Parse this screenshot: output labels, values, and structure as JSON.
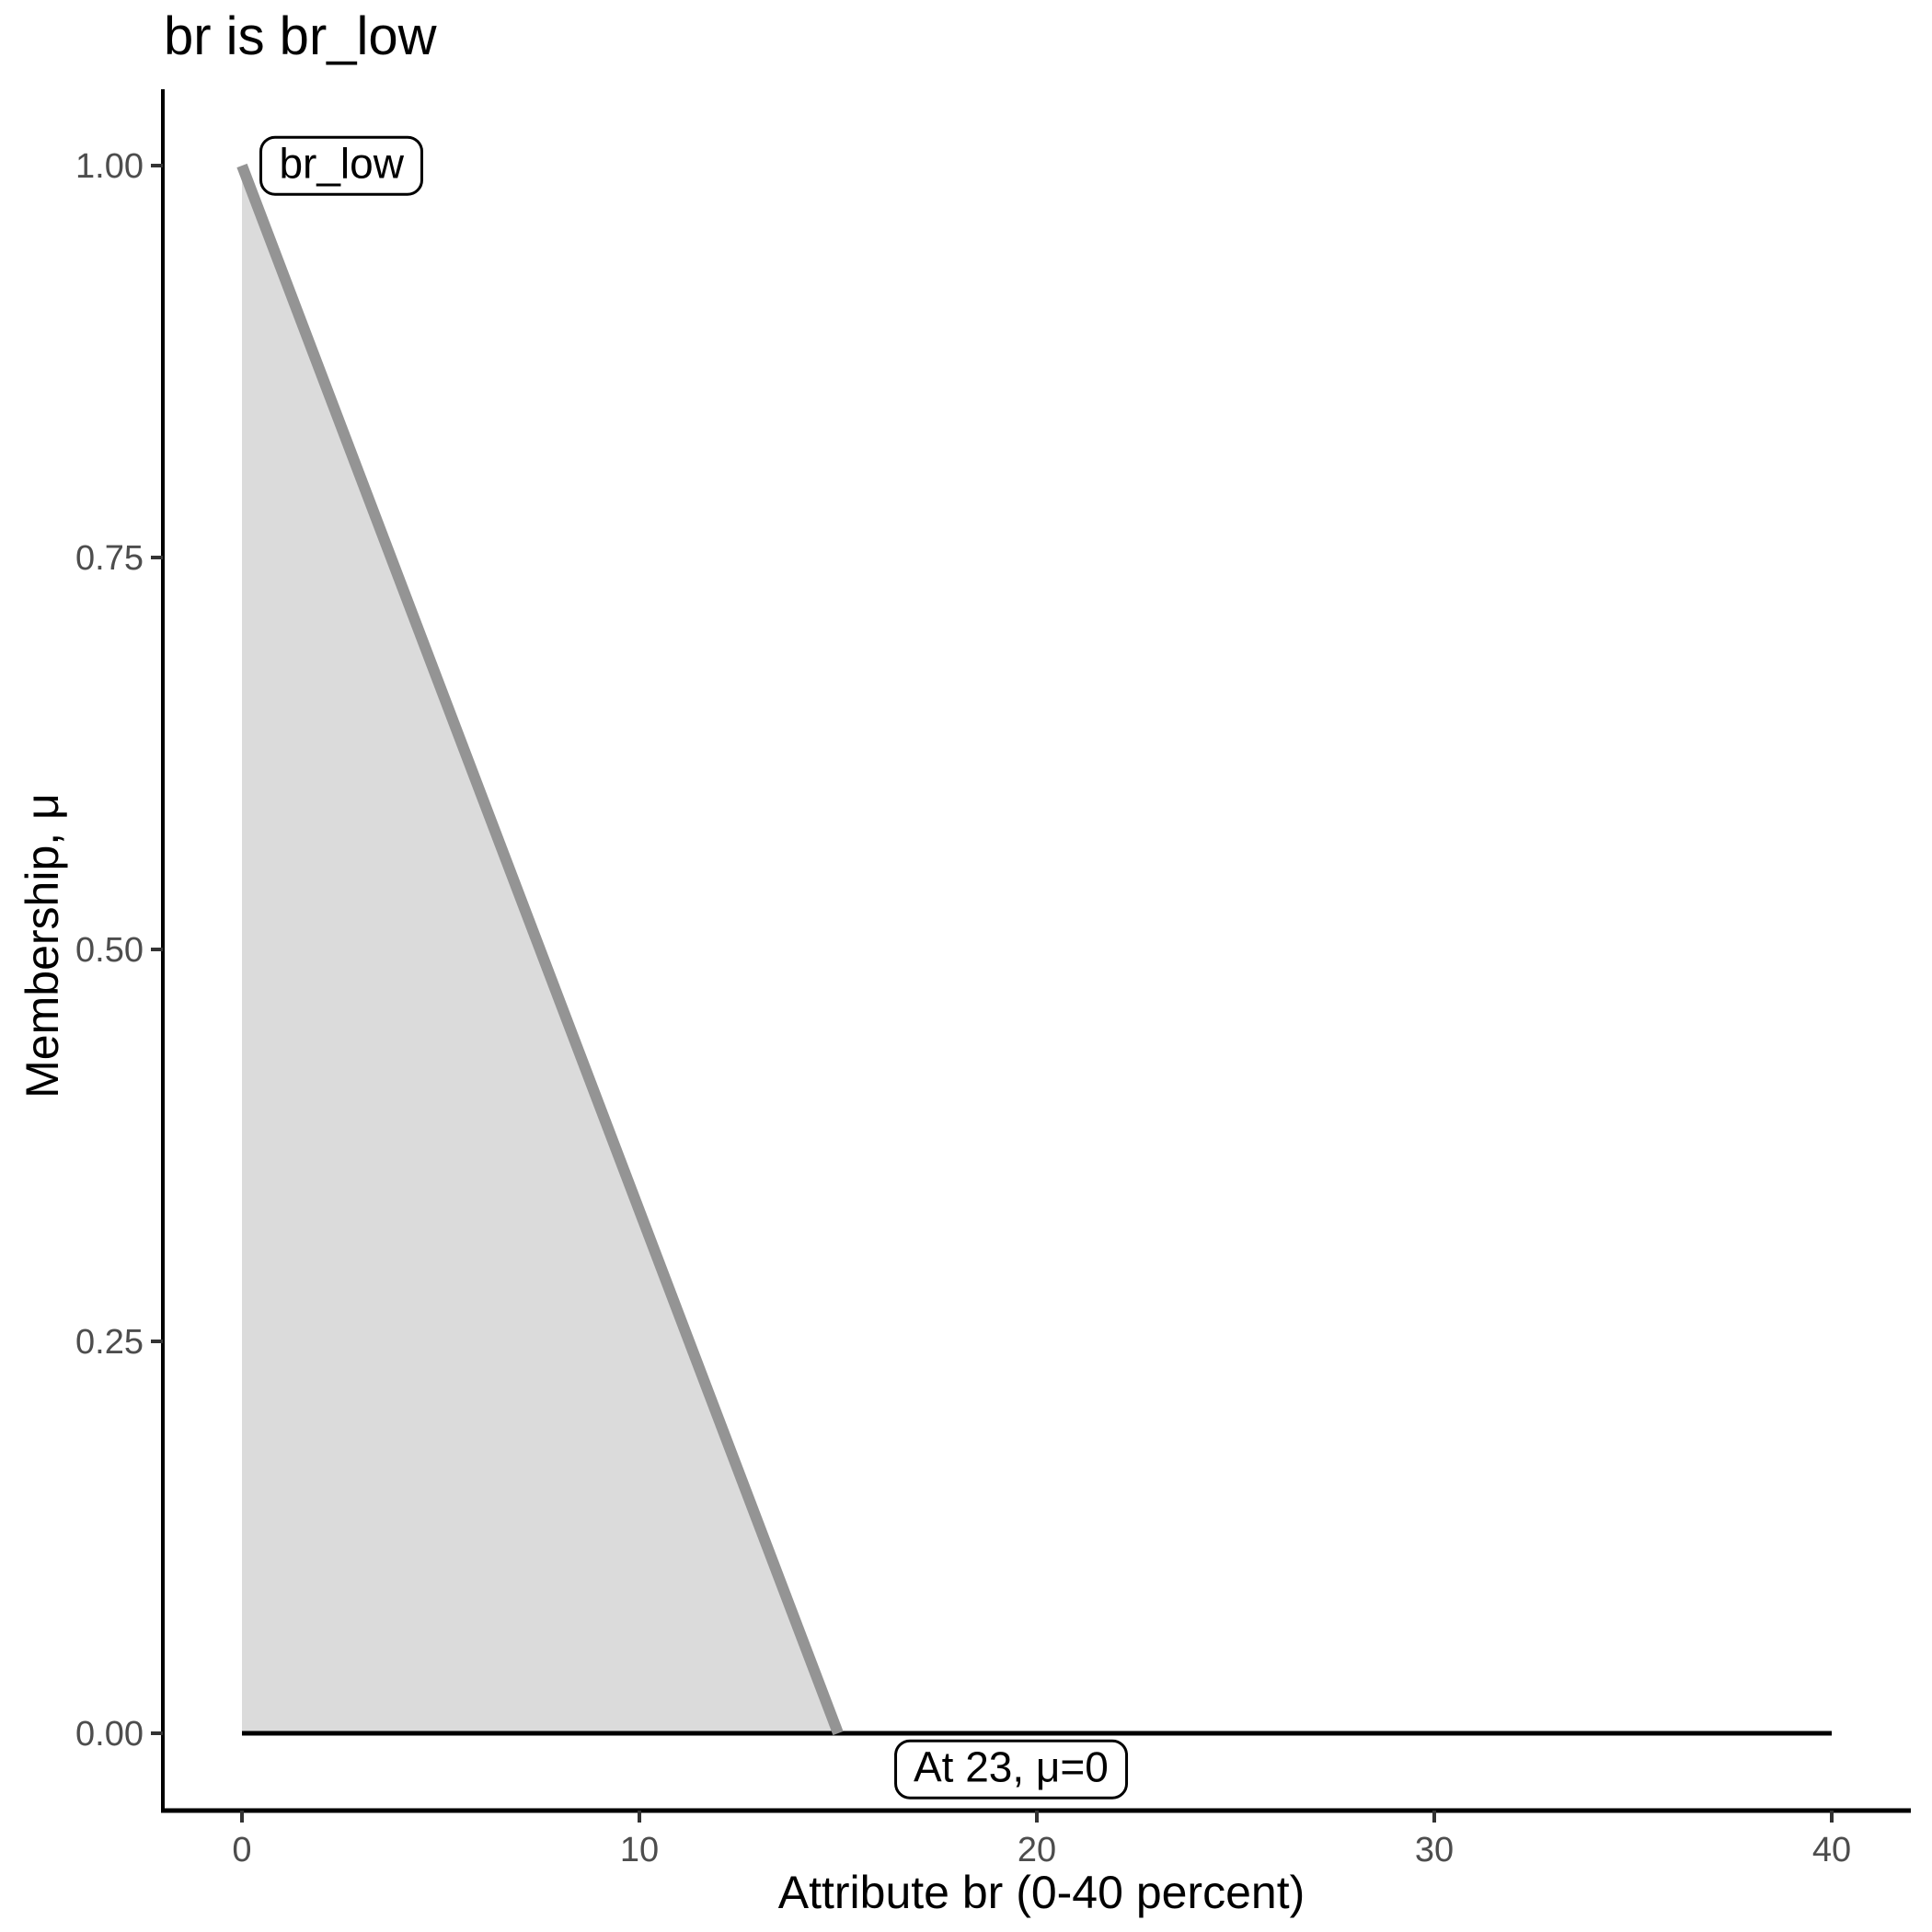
{
  "chart_data": {
    "type": "area",
    "title": "br is br_low",
    "xlabel": "Attribute br (0-40 percent)",
    "ylabel": "Membership, μ",
    "xlim": [
      0,
      40
    ],
    "ylim": [
      0,
      1
    ],
    "grid": false,
    "legend": "none",
    "x_ticks": {
      "values": [
        0,
        10,
        20,
        30,
        40
      ],
      "labels": [
        "0",
        "10",
        "20",
        "30",
        "40"
      ]
    },
    "y_ticks": {
      "values": [
        0,
        0.25,
        0.5,
        0.75,
        1
      ],
      "labels": [
        "0.00",
        "0.25",
        "0.50",
        "0.75",
        "1.00"
      ]
    },
    "fill": {
      "name": "br_low membership area",
      "points": [
        [
          0,
          1
        ],
        [
          15,
          0
        ],
        [
          0,
          0
        ]
      ],
      "color": "#DBDBDB"
    },
    "series": [
      {
        "name": "zero baseline",
        "points": [
          [
            0,
            0
          ],
          [
            40,
            0
          ]
        ],
        "color": "#000000",
        "stroke_width": 5
      },
      {
        "name": "br_low membership edge",
        "points": [
          [
            0,
            1
          ],
          [
            15,
            0
          ]
        ],
        "color": "#949494",
        "stroke_width": 12
      }
    ],
    "annotations": [
      {
        "text": "br_low",
        "x": 0.45,
        "mu": 1.0,
        "anchor": "left-middle"
      },
      {
        "text": "At 23, μ=0",
        "x": 19.35,
        "mu": -0.023,
        "anchor": "center-middle"
      }
    ],
    "colors": {
      "axis": "#000000",
      "tick": "#333333",
      "tick_label": "#4D4D4D",
      "title": "#000000"
    }
  }
}
